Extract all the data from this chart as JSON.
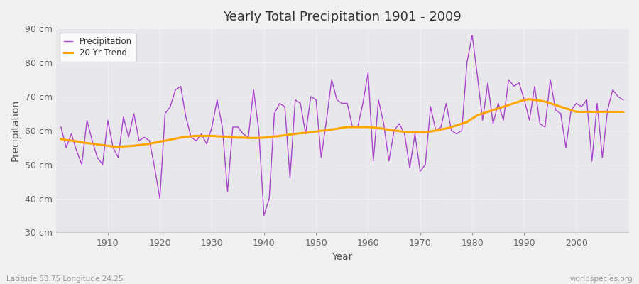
{
  "title": "Yearly Total Precipitation 1901 - 2009",
  "xlabel": "Year",
  "ylabel": "Precipitation",
  "subtitle_left": "Latitude 58.75 Longitude 24.25",
  "subtitle_right": "worldspecies.org",
  "fig_bg_color": "#f0f0f0",
  "plot_bg_color": "#e8e8ec",
  "precip_color": "#aa44cc",
  "trend_color": "#FFA500",
  "ylim": [
    30,
    90
  ],
  "yticks": [
    30,
    40,
    50,
    60,
    70,
    80,
    90
  ],
  "ytick_labels": [
    "30 cm",
    "40 cm",
    "50 cm",
    "60 cm",
    "70 cm",
    "80 cm",
    "90 cm"
  ],
  "xtick_positions": [
    1910,
    1920,
    1930,
    1940,
    1950,
    1960,
    1970,
    1980,
    1990,
    2000
  ],
  "years": [
    1901,
    1902,
    1903,
    1904,
    1905,
    1906,
    1907,
    1908,
    1909,
    1910,
    1911,
    1912,
    1913,
    1914,
    1915,
    1916,
    1917,
    1918,
    1919,
    1920,
    1921,
    1922,
    1923,
    1924,
    1925,
    1926,
    1927,
    1928,
    1929,
    1930,
    1931,
    1932,
    1933,
    1934,
    1935,
    1936,
    1937,
    1938,
    1939,
    1940,
    1941,
    1942,
    1943,
    1944,
    1945,
    1946,
    1947,
    1948,
    1949,
    1950,
    1951,
    1952,
    1953,
    1954,
    1955,
    1956,
    1957,
    1958,
    1959,
    1960,
    1961,
    1962,
    1963,
    1964,
    1965,
    1966,
    1967,
    1968,
    1969,
    1970,
    1971,
    1972,
    1973,
    1974,
    1975,
    1976,
    1977,
    1978,
    1979,
    1980,
    1981,
    1982,
    1983,
    1984,
    1985,
    1986,
    1987,
    1988,
    1989,
    1990,
    1991,
    1992,
    1993,
    1994,
    1995,
    1996,
    1997,
    1998,
    1999,
    2000,
    2001,
    2002,
    2003,
    2004,
    2005,
    2006,
    2007,
    2008,
    2009
  ],
  "precip": [
    61,
    55,
    59,
    54,
    50,
    63,
    57,
    52,
    50,
    63,
    55,
    52,
    64,
    58,
    65,
    57,
    58,
    57,
    49,
    40,
    65,
    67,
    72,
    73,
    64,
    58,
    57,
    59,
    56,
    61,
    69,
    61,
    42,
    61,
    61,
    59,
    58,
    72,
    60,
    35,
    40,
    65,
    68,
    67,
    46,
    69,
    68,
    59,
    70,
    69,
    52,
    63,
    75,
    69,
    68,
    68,
    61,
    61,
    68,
    77,
    51,
    69,
    62,
    51,
    60,
    62,
    59,
    49,
    59,
    48,
    50,
    67,
    60,
    61,
    68,
    60,
    59,
    60,
    80,
    88,
    76,
    63,
    74,
    62,
    68,
    63,
    75,
    73,
    74,
    69,
    63,
    73,
    62,
    61,
    75,
    66,
    65,
    55,
    66,
    68,
    67,
    69,
    51,
    68,
    52,
    66,
    72,
    70,
    69
  ],
  "trend": [
    57.5,
    57.2,
    57.0,
    56.8,
    56.5,
    56.3,
    56.1,
    55.9,
    55.7,
    55.5,
    55.3,
    55.2,
    55.3,
    55.4,
    55.5,
    55.7,
    55.9,
    56.1,
    56.4,
    56.7,
    57.0,
    57.3,
    57.6,
    57.9,
    58.1,
    58.3,
    58.4,
    58.4,
    58.4,
    58.4,
    58.3,
    58.2,
    58.1,
    58.0,
    57.9,
    57.9,
    57.8,
    57.8,
    57.8,
    57.9,
    58.0,
    58.2,
    58.4,
    58.6,
    58.8,
    59.0,
    59.2,
    59.3,
    59.5,
    59.7,
    59.9,
    60.1,
    60.3,
    60.5,
    60.8,
    61.0,
    61.0,
    61.0,
    61.0,
    61.0,
    60.9,
    60.7,
    60.5,
    60.2,
    60.0,
    59.8,
    59.6,
    59.5,
    59.5,
    59.5,
    59.5,
    59.7,
    60.0,
    60.3,
    60.6,
    61.0,
    61.5,
    62.0,
    62.5,
    63.5,
    64.5,
    65.0,
    65.5,
    66.0,
    66.5,
    67.0,
    67.5,
    68.0,
    68.5,
    69.0,
    69.2,
    69.0,
    68.8,
    68.5,
    68.0,
    67.5,
    67.0,
    66.5,
    66.0,
    65.5,
    65.5,
    65.5,
    65.5,
    65.5,
    65.5,
    65.5,
    65.5,
    65.5,
    65.5
  ]
}
